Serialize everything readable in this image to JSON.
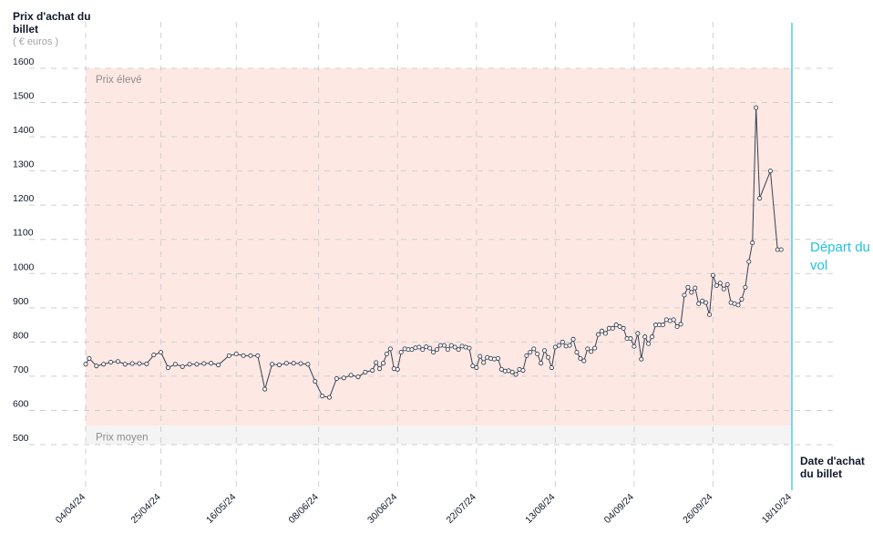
{
  "chart_data": {
    "type": "line",
    "ylabel": "Prix d'achat du billet",
    "yunit": "( € euros )",
    "xlabel": "Date d'achat du billet",
    "annotation": "Départ du vol",
    "bands": [
      {
        "label": "Prix élevé",
        "from": 555,
        "to": 1600,
        "color": "#fde8e4"
      },
      {
        "label": "Prix moyen",
        "from": 500,
        "to": 555,
        "color": "#f4f4f4"
      }
    ],
    "yticks": [
      500,
      600,
      700,
      800,
      900,
      1000,
      1100,
      1200,
      1300,
      1400,
      1500,
      1600
    ],
    "ylim": [
      500,
      1600
    ],
    "xlim": [
      "2024-04-04",
      "2024-10-18"
    ],
    "xticks": [
      {
        "label": "04/04/24",
        "date": "2024-04-04"
      },
      {
        "label": "25/04/24",
        "date": "2024-04-25"
      },
      {
        "label": "16/05/24",
        "date": "2024-05-16"
      },
      {
        "label": "08/06/24",
        "date": "2024-06-08"
      },
      {
        "label": "30/06/24",
        "date": "2024-06-30"
      },
      {
        "label": "22/07/24",
        "date": "2024-07-22"
      },
      {
        "label": "13/08/24",
        "date": "2024-08-13"
      },
      {
        "label": "04/09/24",
        "date": "2024-09-04"
      },
      {
        "label": "26/09/24",
        "date": "2024-09-26"
      },
      {
        "label": "18/10/24",
        "date": "2024-10-18"
      }
    ],
    "grid": true,
    "colors": {
      "line": "#374151",
      "marker_fill": "#ffffff",
      "departure": "#22c3df",
      "grid": "#cfcfcf"
    },
    "points": [
      {
        "x": "2024-04-04",
        "y": 735
      },
      {
        "x": "2024-04-05",
        "y": 752
      },
      {
        "x": "2024-04-07",
        "y": 730
      },
      {
        "x": "2024-04-09",
        "y": 735
      },
      {
        "x": "2024-04-11",
        "y": 741
      },
      {
        "x": "2024-04-13",
        "y": 743
      },
      {
        "x": "2024-04-15",
        "y": 735
      },
      {
        "x": "2024-04-17",
        "y": 737
      },
      {
        "x": "2024-04-19",
        "y": 737
      },
      {
        "x": "2024-04-21",
        "y": 736
      },
      {
        "x": "2024-04-23",
        "y": 762
      },
      {
        "x": "2024-04-25",
        "y": 770
      },
      {
        "x": "2024-04-27",
        "y": 725
      },
      {
        "x": "2024-04-29",
        "y": 735
      },
      {
        "x": "2024-05-01",
        "y": 728
      },
      {
        "x": "2024-05-03",
        "y": 735
      },
      {
        "x": "2024-05-05",
        "y": 735
      },
      {
        "x": "2024-05-07",
        "y": 737
      },
      {
        "x": "2024-05-09",
        "y": 738
      },
      {
        "x": "2024-05-11",
        "y": 733
      },
      {
        "x": "2024-05-14",
        "y": 760
      },
      {
        "x": "2024-05-16",
        "y": 765
      },
      {
        "x": "2024-05-18",
        "y": 760
      },
      {
        "x": "2024-05-20",
        "y": 760
      },
      {
        "x": "2024-05-22",
        "y": 760
      },
      {
        "x": "2024-05-24",
        "y": 662
      },
      {
        "x": "2024-05-26",
        "y": 735
      },
      {
        "x": "2024-05-28",
        "y": 733
      },
      {
        "x": "2024-05-30",
        "y": 738
      },
      {
        "x": "2024-06-01",
        "y": 738
      },
      {
        "x": "2024-06-03",
        "y": 737
      },
      {
        "x": "2024-06-05",
        "y": 735
      },
      {
        "x": "2024-06-07",
        "y": 685
      },
      {
        "x": "2024-06-09",
        "y": 642
      },
      {
        "x": "2024-06-11",
        "y": 638
      },
      {
        "x": "2024-06-13",
        "y": 693
      },
      {
        "x": "2024-06-15",
        "y": 695
      },
      {
        "x": "2024-06-17",
        "y": 703
      },
      {
        "x": "2024-06-19",
        "y": 698
      },
      {
        "x": "2024-06-21",
        "y": 712
      },
      {
        "x": "2024-06-23",
        "y": 717
      },
      {
        "x": "2024-06-24",
        "y": 740
      },
      {
        "x": "2024-06-25",
        "y": 722
      },
      {
        "x": "2024-06-26",
        "y": 738
      },
      {
        "x": "2024-06-27",
        "y": 765
      },
      {
        "x": "2024-06-28",
        "y": 780
      },
      {
        "x": "2024-06-29",
        "y": 722
      },
      {
        "x": "2024-06-30",
        "y": 720
      },
      {
        "x": "2024-07-01",
        "y": 770
      },
      {
        "x": "2024-07-02",
        "y": 780
      },
      {
        "x": "2024-07-03",
        "y": 778
      },
      {
        "x": "2024-07-04",
        "y": 778
      },
      {
        "x": "2024-07-05",
        "y": 783
      },
      {
        "x": "2024-07-06",
        "y": 785
      },
      {
        "x": "2024-07-07",
        "y": 778
      },
      {
        "x": "2024-07-08",
        "y": 786
      },
      {
        "x": "2024-07-09",
        "y": 782
      },
      {
        "x": "2024-07-10",
        "y": 770
      },
      {
        "x": "2024-07-11",
        "y": 778
      },
      {
        "x": "2024-07-12",
        "y": 790
      },
      {
        "x": "2024-07-13",
        "y": 790
      },
      {
        "x": "2024-07-14",
        "y": 778
      },
      {
        "x": "2024-07-15",
        "y": 790
      },
      {
        "x": "2024-07-16",
        "y": 785
      },
      {
        "x": "2024-07-17",
        "y": 778
      },
      {
        "x": "2024-07-18",
        "y": 788
      },
      {
        "x": "2024-07-19",
        "y": 785
      },
      {
        "x": "2024-07-20",
        "y": 782
      },
      {
        "x": "2024-07-21",
        "y": 730
      },
      {
        "x": "2024-07-22",
        "y": 725
      },
      {
        "x": "2024-07-23",
        "y": 758
      },
      {
        "x": "2024-07-24",
        "y": 740
      },
      {
        "x": "2024-07-25",
        "y": 755
      },
      {
        "x": "2024-07-26",
        "y": 752
      },
      {
        "x": "2024-07-27",
        "y": 750
      },
      {
        "x": "2024-07-28",
        "y": 752
      },
      {
        "x": "2024-07-29",
        "y": 720
      },
      {
        "x": "2024-07-30",
        "y": 715
      },
      {
        "x": "2024-07-31",
        "y": 716
      },
      {
        "x": "2024-08-01",
        "y": 712
      },
      {
        "x": "2024-08-02",
        "y": 705
      },
      {
        "x": "2024-08-03",
        "y": 720
      },
      {
        "x": "2024-08-04",
        "y": 717
      },
      {
        "x": "2024-08-05",
        "y": 760
      },
      {
        "x": "2024-08-06",
        "y": 770
      },
      {
        "x": "2024-08-07",
        "y": 780
      },
      {
        "x": "2024-08-08",
        "y": 765
      },
      {
        "x": "2024-08-09",
        "y": 738
      },
      {
        "x": "2024-08-10",
        "y": 775
      },
      {
        "x": "2024-08-11",
        "y": 755
      },
      {
        "x": "2024-08-12",
        "y": 725
      },
      {
        "x": "2024-08-13",
        "y": 785
      },
      {
        "x": "2024-08-14",
        "y": 790
      },
      {
        "x": "2024-08-15",
        "y": 800
      },
      {
        "x": "2024-08-16",
        "y": 788
      },
      {
        "x": "2024-08-17",
        "y": 790
      },
      {
        "x": "2024-08-18",
        "y": 808
      },
      {
        "x": "2024-08-19",
        "y": 770
      },
      {
        "x": "2024-08-20",
        "y": 752
      },
      {
        "x": "2024-08-21",
        "y": 745
      },
      {
        "x": "2024-08-22",
        "y": 780
      },
      {
        "x": "2024-08-23",
        "y": 772
      },
      {
        "x": "2024-08-24",
        "y": 782
      },
      {
        "x": "2024-08-25",
        "y": 822
      },
      {
        "x": "2024-08-26",
        "y": 832
      },
      {
        "x": "2024-08-27",
        "y": 825
      },
      {
        "x": "2024-08-28",
        "y": 840
      },
      {
        "x": "2024-08-29",
        "y": 840
      },
      {
        "x": "2024-08-30",
        "y": 850
      },
      {
        "x": "2024-08-31",
        "y": 845
      },
      {
        "x": "2024-09-01",
        "y": 840
      },
      {
        "x": "2024-09-02",
        "y": 810
      },
      {
        "x": "2024-09-03",
        "y": 810
      },
      {
        "x": "2024-09-04",
        "y": 787
      },
      {
        "x": "2024-09-05",
        "y": 825
      },
      {
        "x": "2024-09-06",
        "y": 750
      },
      {
        "x": "2024-09-07",
        "y": 815
      },
      {
        "x": "2024-09-08",
        "y": 795
      },
      {
        "x": "2024-09-09",
        "y": 815
      },
      {
        "x": "2024-09-10",
        "y": 850
      },
      {
        "x": "2024-09-11",
        "y": 850
      },
      {
        "x": "2024-09-12",
        "y": 850
      },
      {
        "x": "2024-09-13",
        "y": 865
      },
      {
        "x": "2024-09-14",
        "y": 862
      },
      {
        "x": "2024-09-15",
        "y": 865
      },
      {
        "x": "2024-09-16",
        "y": 845
      },
      {
        "x": "2024-09-17",
        "y": 852
      },
      {
        "x": "2024-09-18",
        "y": 937
      },
      {
        "x": "2024-09-19",
        "y": 960
      },
      {
        "x": "2024-09-20",
        "y": 945
      },
      {
        "x": "2024-09-21",
        "y": 958
      },
      {
        "x": "2024-09-22",
        "y": 912
      },
      {
        "x": "2024-09-23",
        "y": 920
      },
      {
        "x": "2024-09-24",
        "y": 915
      },
      {
        "x": "2024-09-25",
        "y": 880
      },
      {
        "x": "2024-09-26",
        "y": 995
      },
      {
        "x": "2024-09-27",
        "y": 965
      },
      {
        "x": "2024-09-28",
        "y": 972
      },
      {
        "x": "2024-09-29",
        "y": 955
      },
      {
        "x": "2024-09-30",
        "y": 968
      },
      {
        "x": "2024-10-01",
        "y": 915
      },
      {
        "x": "2024-10-02",
        "y": 912
      },
      {
        "x": "2024-10-03",
        "y": 908
      },
      {
        "x": "2024-10-04",
        "y": 925
      },
      {
        "x": "2024-10-05",
        "y": 960
      },
      {
        "x": "2024-10-06",
        "y": 1035
      },
      {
        "x": "2024-10-07",
        "y": 1090
      },
      {
        "x": "2024-10-08",
        "y": 1485
      },
      {
        "x": "2024-10-09",
        "y": 1220
      },
      {
        "x": "2024-10-12",
        "y": 1300
      },
      {
        "x": "2024-10-14",
        "y": 1070
      },
      {
        "x": "2024-10-15",
        "y": 1070
      }
    ]
  },
  "labels": {
    "y_title": "Prix d'achat du billet",
    "y_unit": "( € euros )",
    "x_title": "Date d'achat du billet",
    "departure": "Départ du vol"
  }
}
